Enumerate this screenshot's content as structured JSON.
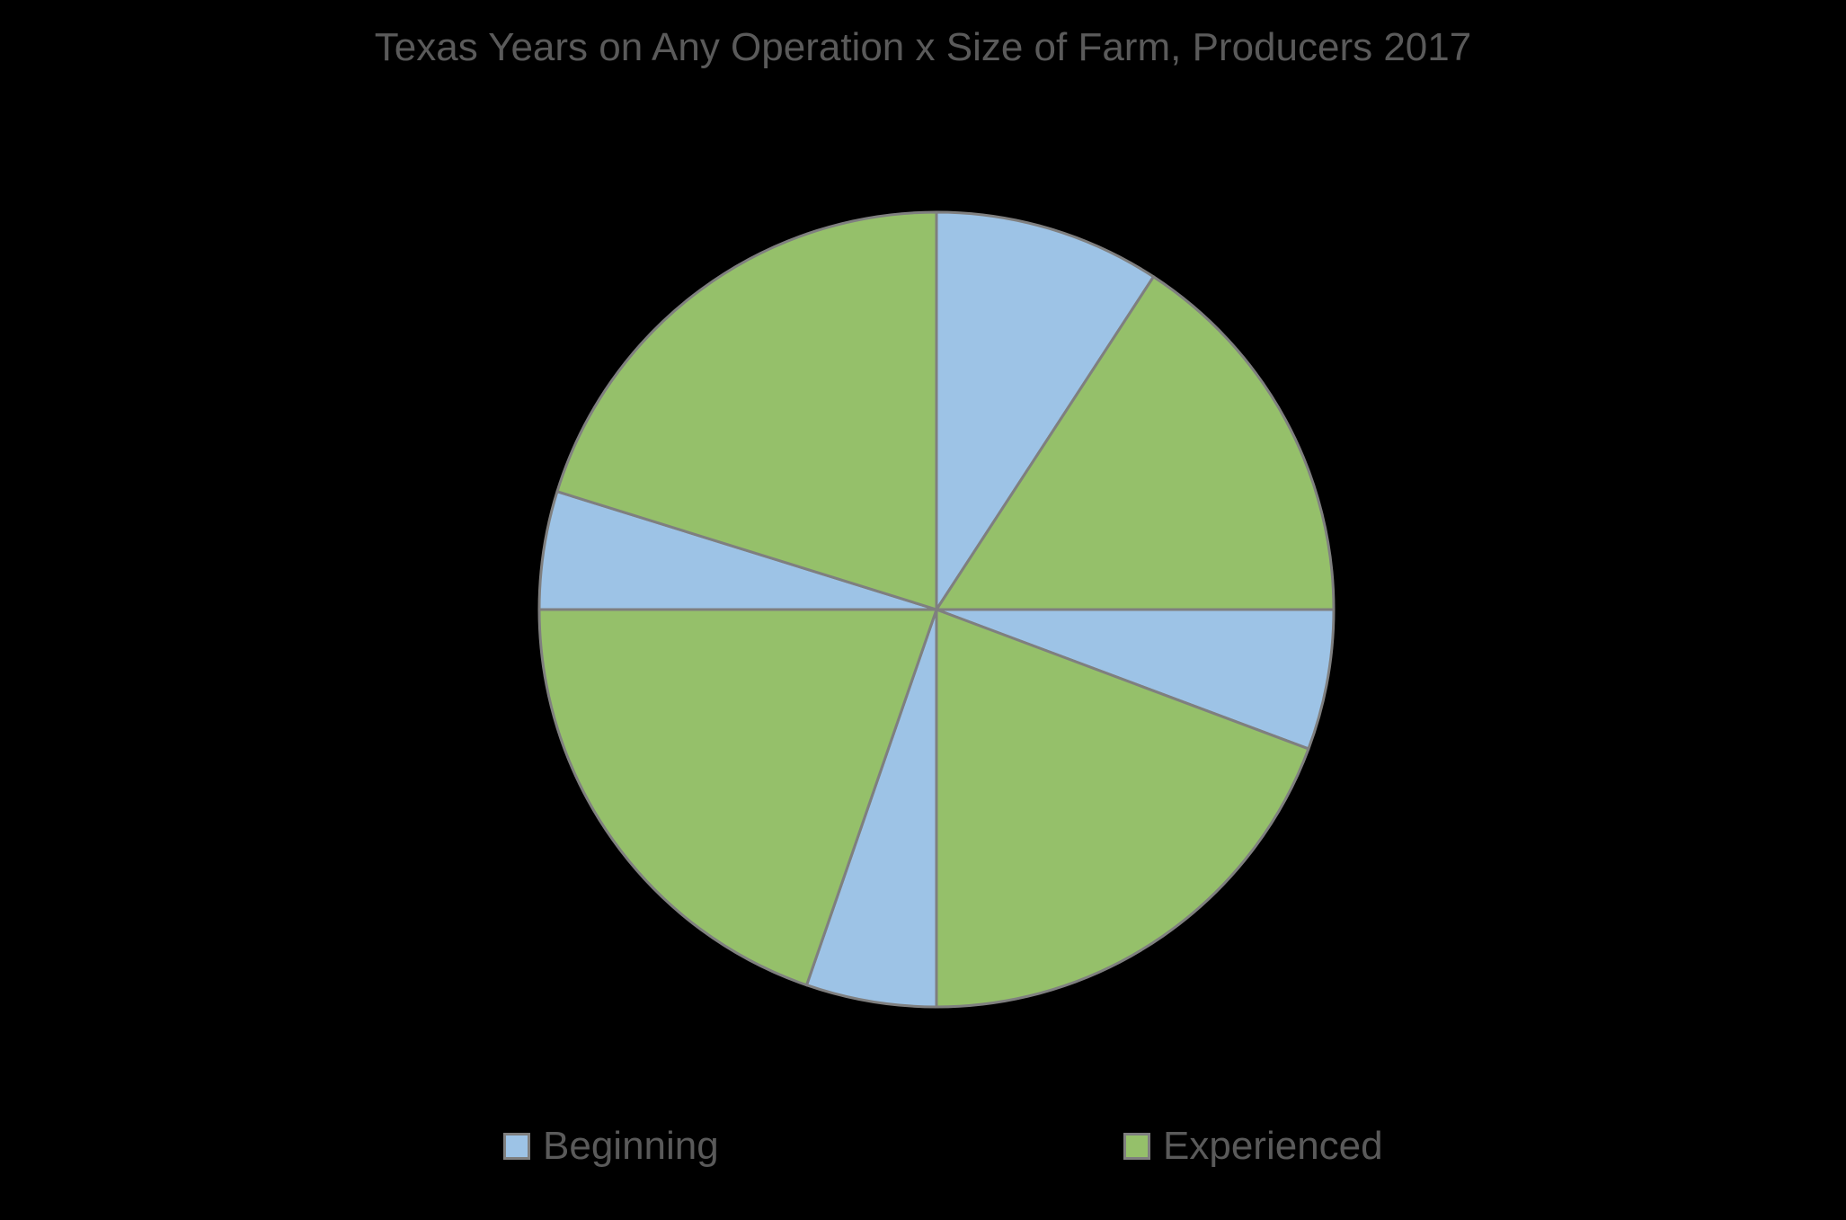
{
  "chart_data": {
    "type": "pie",
    "title": "Texas Years on Any Operation x Size of Farm, Producers 2017",
    "slice_order": "clockwise from 12 o'clock",
    "slices": [
      {
        "series": "Beginning",
        "value": 9.2
      },
      {
        "series": "Experienced",
        "value": 15.8
      },
      {
        "series": "Beginning",
        "value": 5.7
      },
      {
        "series": "Experienced",
        "value": 19.3
      },
      {
        "series": "Beginning",
        "value": 5.3
      },
      {
        "series": "Experienced",
        "value": 19.7
      },
      {
        "series": "Beginning",
        "value": 4.8
      },
      {
        "series": "Experienced",
        "value": 20.2
      }
    ],
    "legend": [
      {
        "name": "Beginning",
        "color": "#9dc3e6"
      },
      {
        "name": "Experienced",
        "color": "#95c06a"
      }
    ],
    "legend_position": "bottom",
    "border_color": "#7f7f7f"
  }
}
